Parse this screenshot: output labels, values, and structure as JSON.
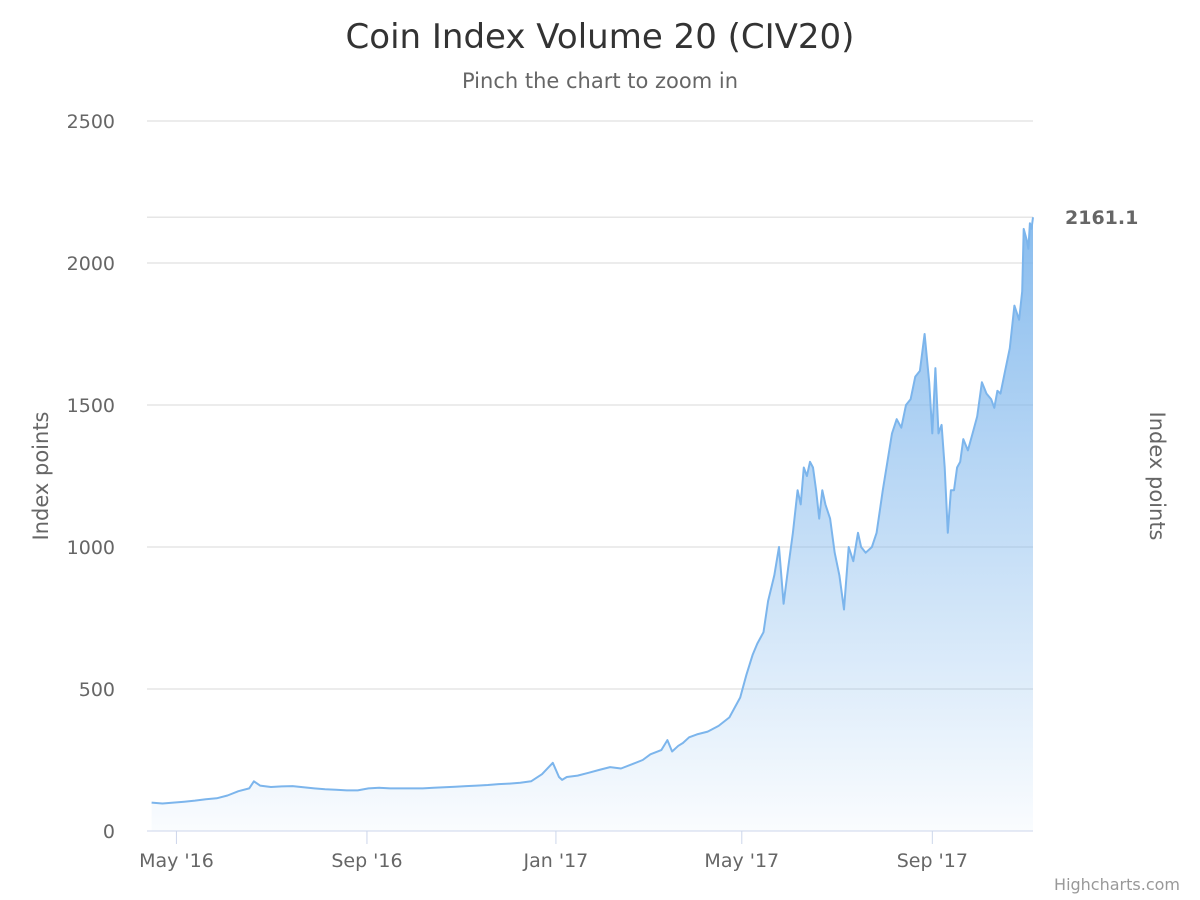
{
  "chart_data": {
    "type": "area",
    "title": "Coin Index Volume 20 (CIV20)",
    "subtitle": "Pinch the chart to zoom in",
    "ylabel": "Index points",
    "ylabel_right": "Index points",
    "ylim": [
      0,
      2500
    ],
    "y_ticks": [
      "0",
      "500",
      "1000",
      "1500",
      "2000",
      "2500"
    ],
    "y_tick_values": [
      0,
      500,
      1000,
      1500,
      2000,
      2500
    ],
    "x_ticks": [
      {
        "label": "May '16",
        "date": "2016-05-01"
      },
      {
        "label": "Sep '16",
        "date": "2016-09-01"
      },
      {
        "label": "Jan '17",
        "date": "2017-01-01"
      },
      {
        "label": "May '17",
        "date": "2017-05-01"
      },
      {
        "label": "Sep '17",
        "date": "2017-09-01"
      }
    ],
    "xlim": [
      "2016-04-12",
      "2017-11-05"
    ],
    "grid": true,
    "last_value_label": "2161.1",
    "credits": "Highcharts.com",
    "colors": {
      "line": "#7cb5ec",
      "grid": "#e6e6e6",
      "axis": "#ccd6eb"
    },
    "series": [
      {
        "x": [
          "2016-04-15",
          "2016-04-22",
          "2016-04-29",
          "2016-05-06",
          "2016-05-13",
          "2016-05-20",
          "2016-05-27",
          "2016-06-03",
          "2016-06-10",
          "2016-06-17",
          "2016-06-20",
          "2016-06-24",
          "2016-07-01",
          "2016-07-08",
          "2016-07-15",
          "2016-07-22",
          "2016-07-29",
          "2016-08-05",
          "2016-08-12",
          "2016-08-19",
          "2016-08-26",
          "2016-09-02",
          "2016-09-09",
          "2016-09-16",
          "2016-09-23",
          "2016-09-30",
          "2016-10-07",
          "2016-10-14",
          "2016-10-21",
          "2016-10-28",
          "2016-11-04",
          "2016-11-11",
          "2016-11-18",
          "2016-11-25",
          "2016-12-02",
          "2016-12-09",
          "2016-12-16",
          "2016-12-23",
          "2016-12-30",
          "2017-01-03",
          "2017-01-05",
          "2017-01-08",
          "2017-01-15",
          "2017-01-22",
          "2017-01-29",
          "2017-02-05",
          "2017-02-12",
          "2017-02-19",
          "2017-02-26",
          "2017-03-03",
          "2017-03-10",
          "2017-03-14",
          "2017-03-17",
          "2017-03-21",
          "2017-03-24",
          "2017-03-28",
          "2017-04-02",
          "2017-04-09",
          "2017-04-16",
          "2017-04-23",
          "2017-04-30",
          "2017-05-04",
          "2017-05-08",
          "2017-05-11",
          "2017-05-15",
          "2017-05-18",
          "2017-05-22",
          "2017-05-25",
          "2017-05-28",
          "2017-05-31",
          "2017-06-03",
          "2017-06-06",
          "2017-06-08",
          "2017-06-10",
          "2017-06-12",
          "2017-06-14",
          "2017-06-16",
          "2017-06-18",
          "2017-06-20",
          "2017-06-22",
          "2017-06-24",
          "2017-06-27",
          "2017-06-30",
          "2017-07-03",
          "2017-07-06",
          "2017-07-09",
          "2017-07-12",
          "2017-07-15",
          "2017-07-17",
          "2017-07-20",
          "2017-07-24",
          "2017-07-27",
          "2017-07-31",
          "2017-08-03",
          "2017-08-06",
          "2017-08-09",
          "2017-08-12",
          "2017-08-15",
          "2017-08-18",
          "2017-08-21",
          "2017-08-24",
          "2017-08-27",
          "2017-08-30",
          "2017-09-01",
          "2017-09-03",
          "2017-09-05",
          "2017-09-07",
          "2017-09-09",
          "2017-09-11",
          "2017-09-13",
          "2017-09-15",
          "2017-09-17",
          "2017-09-19",
          "2017-09-21",
          "2017-09-24",
          "2017-09-27",
          "2017-09-30",
          "2017-10-03",
          "2017-10-06",
          "2017-10-09",
          "2017-10-11",
          "2017-10-13",
          "2017-10-15",
          "2017-10-18",
          "2017-10-21",
          "2017-10-24",
          "2017-10-27",
          "2017-10-29",
          "2017-10-30",
          "2017-11-01",
          "2017-11-02",
          "2017-11-03",
          "2017-11-04",
          "2017-11-05"
        ],
        "y": [
          100,
          97,
          100,
          103,
          107,
          112,
          115,
          125,
          140,
          150,
          175,
          160,
          155,
          157,
          158,
          154,
          150,
          147,
          145,
          143,
          143,
          150,
          152,
          150,
          150,
          150,
          150,
          152,
          154,
          156,
          158,
          160,
          162,
          165,
          167,
          170,
          175,
          200,
          240,
          190,
          180,
          190,
          195,
          205,
          215,
          225,
          220,
          235,
          250,
          270,
          285,
          320,
          280,
          300,
          310,
          330,
          340,
          350,
          370,
          400,
          470,
          550,
          620,
          660,
          700,
          810,
          900,
          1000,
          800,
          930,
          1050,
          1200,
          1150,
          1280,
          1250,
          1300,
          1280,
          1200,
          1100,
          1200,
          1150,
          1100,
          980,
          900,
          780,
          1000,
          950,
          1050,
          1000,
          980,
          1000,
          1050,
          1200,
          1300,
          1400,
          1450,
          1420,
          1500,
          1520,
          1600,
          1620,
          1750,
          1580,
          1400,
          1630,
          1400,
          1430,
          1280,
          1050,
          1200,
          1200,
          1280,
          1300,
          1380,
          1340,
          1400,
          1460,
          1580,
          1540,
          1520,
          1490,
          1550,
          1540,
          1620,
          1700,
          1850,
          1800,
          1900,
          2120,
          2080,
          2050,
          2140,
          2120,
          2161.1
        ]
      }
    ]
  }
}
